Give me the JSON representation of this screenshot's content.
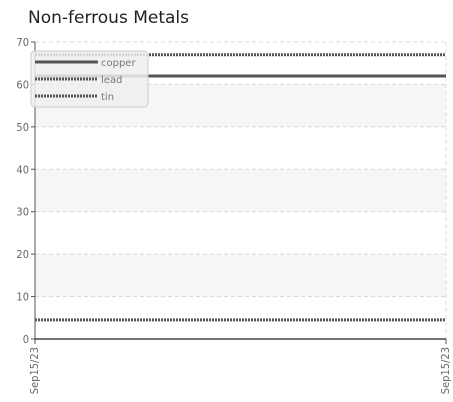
{
  "chart_data": {
    "type": "line",
    "title": "Non-ferrous Metals",
    "xlabel": "",
    "ylabel": "",
    "x": [
      "Sep15/23",
      "Sep15/23"
    ],
    "series": [
      {
        "name": "copper",
        "values": [
          62,
          62
        ],
        "color": "#555555",
        "style": "solid"
      },
      {
        "name": "lead",
        "values": [
          67,
          67
        ],
        "color": "#555555",
        "style": "dotted"
      },
      {
        "name": "tin",
        "values": [
          4.5,
          4.5
        ],
        "color": "#555555",
        "style": "dotted"
      }
    ],
    "ylim": [
      0,
      70
    ],
    "yticks": [
      0,
      10,
      20,
      30,
      40,
      50,
      60,
      70
    ],
    "xticks": [
      "Sep15/23",
      "Sep15/23"
    ],
    "grid": true,
    "legend_position": "top-left"
  }
}
